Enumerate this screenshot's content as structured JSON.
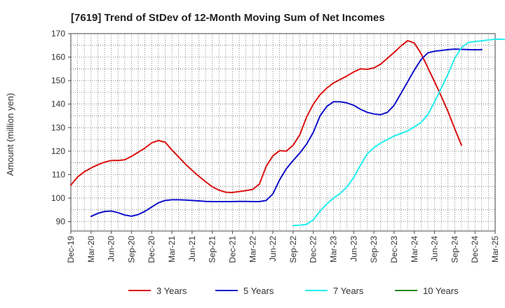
{
  "chart_data": {
    "type": "line",
    "title": "[7619]  Trend of StDev of 12-Month Moving Sum of Net Incomes",
    "ylabel": "Amount (million yen)",
    "xlabel": "",
    "ylim": [
      86,
      170
    ],
    "yticks": [
      90,
      100,
      110,
      120,
      130,
      140,
      150,
      160,
      170
    ],
    "xticks": [
      "Dec-19",
      "Mar-20",
      "Jun-20",
      "Sep-20",
      "Dec-20",
      "Mar-21",
      "Jun-21",
      "Sep-21",
      "Dec-21",
      "Mar-22",
      "Jun-22",
      "Sep-22",
      "Dec-22",
      "Mar-23",
      "Jun-23",
      "Sep-23",
      "Dec-23",
      "Mar-24",
      "Jun-24",
      "Sep-24",
      "Dec-24",
      "Mar-25"
    ],
    "x_start": "Dec-19",
    "grid": true,
    "legend_position": "bottom",
    "series": [
      {
        "name": "3 Years",
        "color": "#dd1111",
        "start_index": 0,
        "values": [
          105.5,
          109,
          111.2,
          112.8,
          114.2,
          115.3,
          116,
          116,
          116.3,
          117.8,
          119.5,
          121.3,
          123.5,
          124.5,
          123.8,
          120.5,
          117.5,
          114.5,
          111.8,
          109.3,
          107,
          104.8,
          103.4,
          102.5,
          102.4,
          102.8,
          103.2,
          103.7,
          106,
          113.5,
          118,
          120.2,
          120,
          122.5,
          127,
          134.5,
          140,
          144,
          146.8,
          149,
          150.5,
          152,
          153.7,
          155,
          154.8,
          155.4,
          157,
          159.5,
          162,
          164.7,
          167,
          166,
          161.5,
          155.5,
          149.5,
          143.3,
          136.8,
          129.5,
          122.5
        ]
      },
      {
        "name": "5 Years",
        "color": "#1111cc",
        "start_index": 3,
        "values": [
          92.2,
          93.5,
          94.3,
          94.5,
          93.8,
          92.8,
          92.3,
          93,
          94.4,
          96.2,
          98,
          99,
          99.3,
          99.3,
          99.2,
          99,
          98.8,
          98.6,
          98.5,
          98.5,
          98.5,
          98.5,
          98.6,
          98.6,
          98.5,
          98.5,
          99,
          101.8,
          107.8,
          112.5,
          116,
          119.2,
          123,
          128,
          135,
          139,
          141,
          141,
          140.5,
          139.5,
          137.8,
          136.5,
          135.8,
          135.5,
          136.5,
          139.5,
          144.5,
          149.5,
          154.5,
          159,
          161.8,
          162.5,
          162.8,
          163.2,
          163.4,
          163.3,
          163.2,
          163.1,
          163.2
        ]
      },
      {
        "name": "7 Years",
        "color": "#22eeee",
        "start_index": 33,
        "values": [
          88.3,
          88.5,
          88.8,
          90.8,
          94.5,
          97.5,
          100,
          102,
          104.8,
          108.8,
          114,
          118.8,
          121.5,
          123.4,
          125,
          126.4,
          127.5,
          128.6,
          130.3,
          132.2,
          135.5,
          141,
          146.8,
          152.8,
          159.5,
          164,
          166.2,
          166.6,
          166.9,
          167.3,
          167.6,
          167.6,
          167.3,
          166.9
        ]
      },
      {
        "name": "10 Years",
        "color": "#228822",
        "start_index": 0,
        "values": []
      }
    ]
  }
}
